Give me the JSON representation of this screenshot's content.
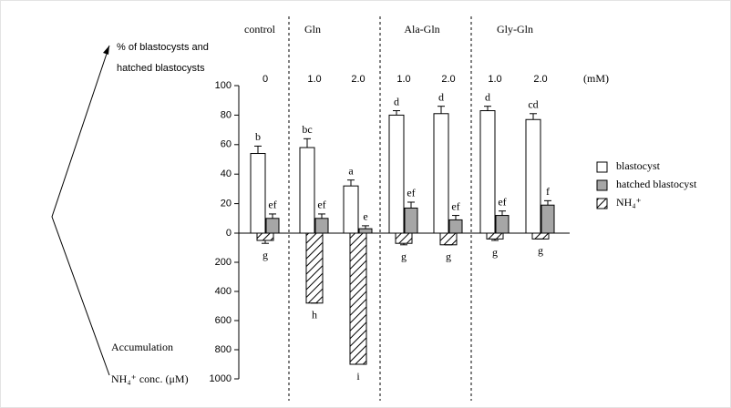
{
  "chart_data": {
    "type": "bar",
    "y_label_lines": [
      "% of blastocysts and",
      "hatched blastocysts"
    ],
    "y2_label_lines": [
      "Accumulation",
      "NH₄⁺ conc. (μM)"
    ],
    "unit": "(mM)",
    "groups": [
      {
        "name": "control",
        "categories": [
          "0"
        ]
      },
      {
        "name": "Gln",
        "categories": [
          "1.0",
          "2.0"
        ]
      },
      {
        "name": "Ala-Gln",
        "categories": [
          "1.0",
          "2.0"
        ]
      },
      {
        "name": "Gly-Gln",
        "categories": [
          "1.0",
          "2.0"
        ]
      }
    ],
    "ylim": [
      0,
      100
    ],
    "yticks": [
      0,
      20,
      40,
      60,
      80,
      100
    ],
    "y2lim": [
      0,
      1000
    ],
    "y2ticks": [
      200,
      400,
      600,
      800,
      1000
    ],
    "series": [
      {
        "name": "blastocyst",
        "color": "#ffffff",
        "values": [
          54,
          58,
          32,
          80,
          81,
          83,
          77
        ],
        "errors": [
          5,
          6,
          4,
          3,
          5,
          3,
          4
        ],
        "letters": [
          "b",
          "bc",
          "a",
          "d",
          "d",
          "d",
          "cd"
        ]
      },
      {
        "name": "hatched blastocyst",
        "color": "#a6a6a6",
        "values": [
          10,
          10,
          3,
          17,
          9,
          12,
          19
        ],
        "errors": [
          3,
          3,
          2,
          4,
          3,
          3,
          3
        ],
        "letters": [
          "ef",
          "ef",
          "e",
          "ef",
          "ef",
          "ef",
          "f"
        ]
      },
      {
        "name": "NH₄⁺",
        "color": "hatch",
        "axis": "y2",
        "values": [
          50,
          480,
          900,
          70,
          80,
          40,
          40
        ],
        "errors": [
          20,
          0,
          0,
          10,
          0,
          10,
          0
        ],
        "letters": [
          "g",
          "h",
          "i",
          "g",
          "g",
          "g",
          "g"
        ]
      }
    ]
  }
}
